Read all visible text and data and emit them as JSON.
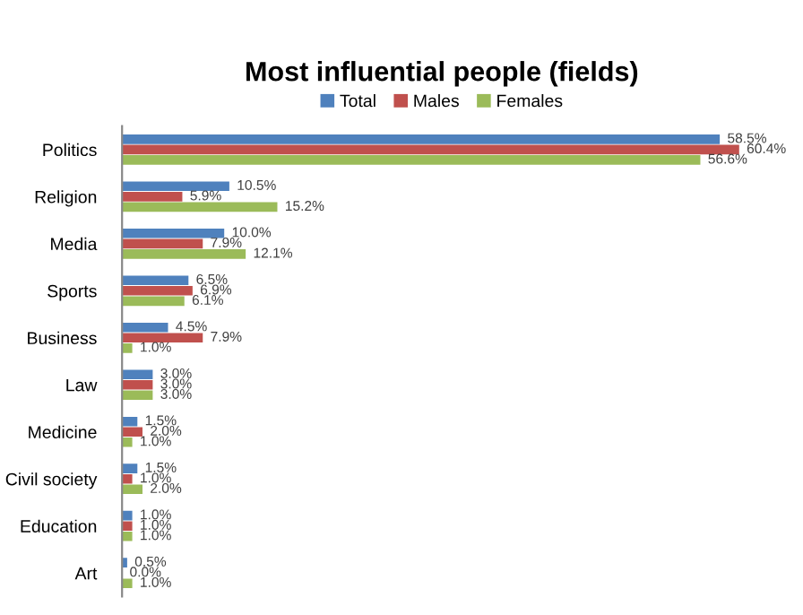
{
  "chart_data": {
    "type": "bar",
    "orientation": "horizontal",
    "title": "Most influential people (fields)",
    "categories": [
      "Politics",
      "Religion",
      "Media",
      "Sports",
      "Business",
      "Law",
      "Medicine",
      "Civil society",
      "Education",
      "Art"
    ],
    "series": [
      {
        "name": "Total",
        "color": "#4f81bd",
        "values": [
          58.5,
          10.5,
          10.0,
          6.5,
          4.5,
          3.0,
          1.5,
          1.5,
          1.0,
          0.5
        ],
        "value_labels": [
          "58.5%",
          "10.5%",
          "10.0%",
          "6.5%",
          "4.5%",
          "3.0%",
          "1.5%",
          "1.5%",
          "1.0%",
          "0.5%"
        ]
      },
      {
        "name": "Males",
        "color": "#c0504d",
        "values": [
          60.4,
          5.9,
          7.9,
          6.9,
          7.9,
          3.0,
          2.0,
          1.0,
          1.0,
          0.0
        ],
        "value_labels": [
          "60.4%",
          "5.9%",
          "7.9%",
          "6.9%",
          "7.9%",
          "3.0%",
          "2.0%",
          "1.0%",
          "1.0%",
          "0.0%"
        ]
      },
      {
        "name": "Females",
        "color": "#9bbb59",
        "values": [
          56.6,
          15.2,
          12.1,
          6.1,
          1.0,
          3.0,
          1.0,
          2.0,
          1.0,
          1.0
        ],
        "value_labels": [
          "56.6%",
          "15.2%",
          "12.1%",
          "6.1%",
          "1.0%",
          "3.0%",
          "1.0%",
          "2.0%",
          "1.0%",
          "1.0%"
        ]
      }
    ],
    "legend": "top",
    "grid": false,
    "tick_labels": "y"
  }
}
